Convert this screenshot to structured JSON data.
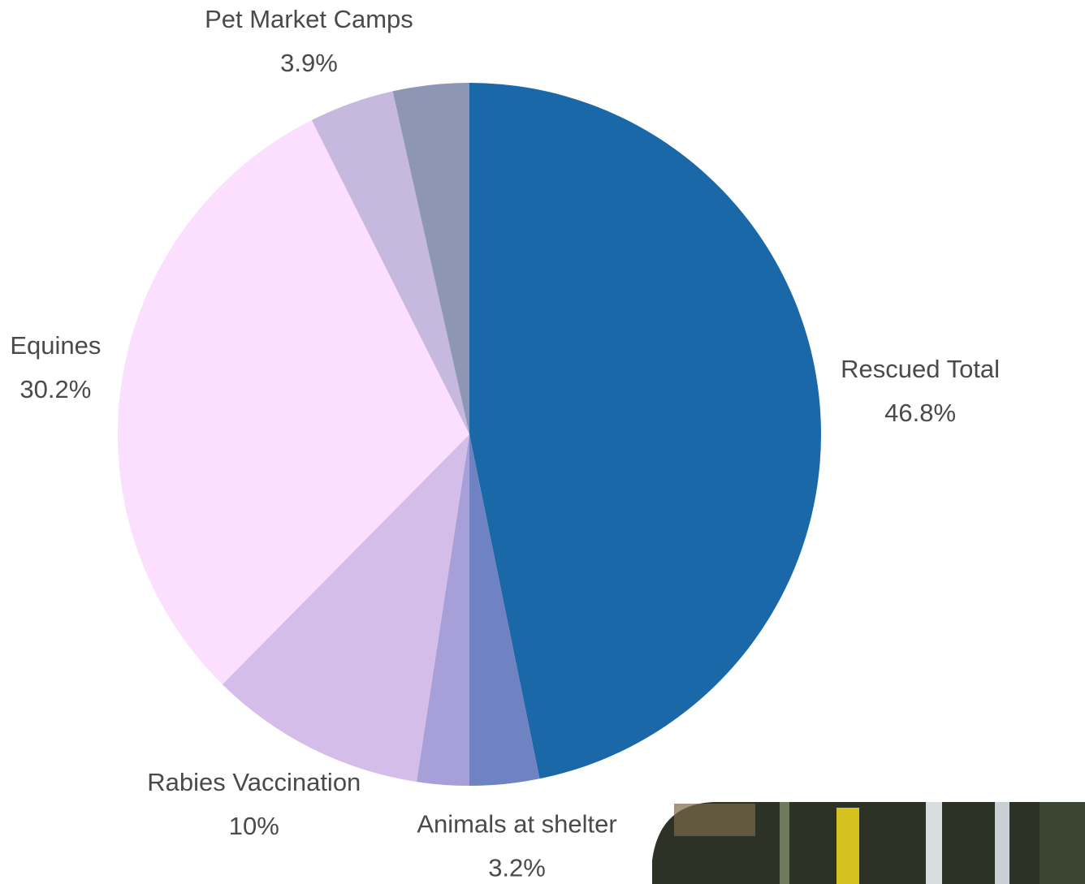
{
  "chart_data": {
    "type": "pie",
    "categories": [
      "Rescued Total",
      "Animals at shelter",
      null,
      "Rabies Vaccination",
      "Equines",
      "Pet Market Camps",
      null
    ],
    "values": [
      46.8,
      3.2,
      2.4,
      10,
      30.2,
      3.9,
      3.5
    ],
    "value_labels": [
      "46.8%",
      "3.2%",
      null,
      "10%",
      "30.2%",
      "3.9%",
      null
    ],
    "colors": [
      "#1b68a8",
      "#6f82c2",
      "#a7a0d8",
      "#d5bdea",
      "#fcdefe",
      "#c6b8de",
      "#8e96b6"
    ]
  }
}
